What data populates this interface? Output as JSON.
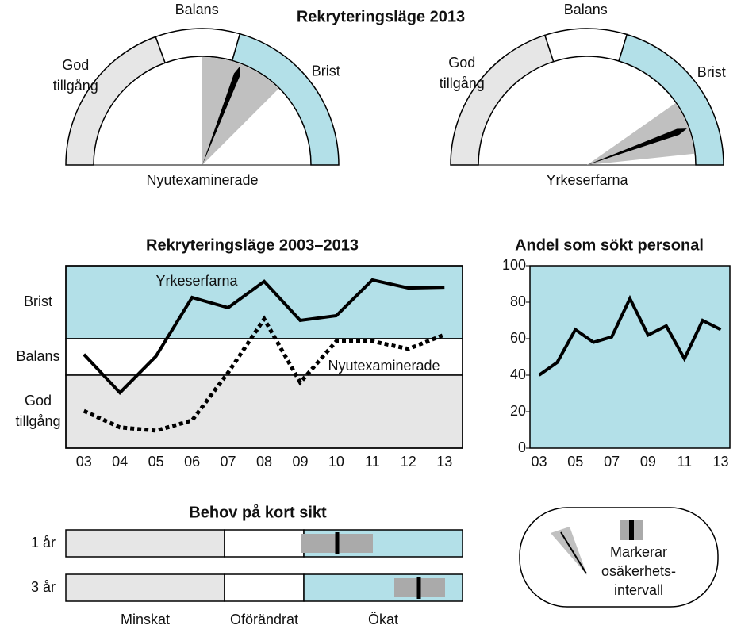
{
  "chart_data": [
    {
      "type": "gauge",
      "title": "Rekryteringsläge 2013",
      "label": "Nyutexaminerade",
      "segments": [
        {
          "name": [
            "God",
            "tillgång"
          ],
          "from": 180,
          "to": 110,
          "color": "#e6e6e6"
        },
        {
          "name": [
            "Balans"
          ],
          "from": 110,
          "to": 74,
          "color": "#ffffff"
        },
        {
          "name": [
            "Brist"
          ],
          "from": 74,
          "to": 0,
          "color": "#b3e0e8"
        }
      ],
      "value": 69,
      "interval": [
        45,
        90
      ]
    },
    {
      "type": "gauge",
      "label": "Yrkeserfarna",
      "segments": [
        {
          "name": [
            "God",
            "tillgång"
          ],
          "from": 180,
          "to": 108,
          "color": "#e6e6e6"
        },
        {
          "name": [
            "Balans"
          ],
          "from": 108,
          "to": 73,
          "color": "#ffffff"
        },
        {
          "name": [
            "Brist"
          ],
          "from": 73,
          "to": 0,
          "color": "#b3e0e8"
        }
      ],
      "value": 20,
      "interval": [
        6,
        35
      ]
    },
    {
      "type": "line",
      "title": "Rekryteringsläge 2003–2013",
      "categories": [
        "03",
        "04",
        "05",
        "06",
        "07",
        "08",
        "09",
        "10",
        "11",
        "12",
        "13"
      ],
      "bands": [
        {
          "name": [
            "Brist"
          ],
          "from": 3,
          "to": 5,
          "color": "#b3e0e8"
        },
        {
          "name": [
            "Balans"
          ],
          "from": 2,
          "to": 3,
          "color": "#ffffff"
        },
        {
          "name": [
            "God",
            "tillgång"
          ],
          "from": 0,
          "to": 2,
          "color": "#e6e6e6"
        }
      ],
      "series": [
        {
          "name": "Yrkeserfarna",
          "color": "#000000",
          "dashed": false,
          "values": [
            2.57,
            1.52,
            2.52,
            4.13,
            3.85,
            4.57,
            3.5,
            3.63,
            4.61,
            4.39,
            4.41
          ]
        },
        {
          "name": "Nyutexaminerade",
          "color": "#000000",
          "dashed": true,
          "values": [
            1.02,
            0.57,
            0.48,
            0.76,
            2.07,
            3.54,
            1.8,
            2.93,
            2.93,
            2.72,
            3.11
          ]
        }
      ],
      "ylim": [
        0,
        5
      ]
    },
    {
      "type": "line",
      "title": "Andel som sökt personal",
      "background": "#b3e0e8",
      "categories": [
        "03",
        null,
        "05",
        null,
        "07",
        null,
        "09",
        null,
        "11",
        null,
        "13"
      ],
      "series": [
        {
          "color": "#000000",
          "dashed": false,
          "values": [
            40,
            47,
            65,
            58,
            61,
            82,
            62,
            67,
            49,
            70,
            65
          ]
        }
      ],
      "ylim": [
        0,
        100
      ],
      "yticks": [
        0,
        20,
        40,
        60,
        80,
        100
      ]
    },
    {
      "type": "range",
      "title": "Behov på kort sikt",
      "categories": [
        "1 år",
        "3 år"
      ],
      "sections": [
        {
          "name": "Minskat",
          "from": 0,
          "to": 2,
          "color": "#e6e6e6"
        },
        {
          "name": "Oförändrat",
          "from": 2,
          "to": 3,
          "color": "#ffffff"
        },
        {
          "name": "Ökat",
          "from": 3,
          "to": 5,
          "color": "#b3e0e8"
        }
      ],
      "xlim": [
        0,
        5
      ],
      "values": [
        3.42,
        4.45
      ],
      "intervals": [
        [
          2.97,
          3.87
        ],
        [
          4.14,
          4.78
        ]
      ]
    }
  ],
  "legend": {
    "text": [
      "Markerar",
      "osäkerhets-",
      "intervall"
    ]
  }
}
